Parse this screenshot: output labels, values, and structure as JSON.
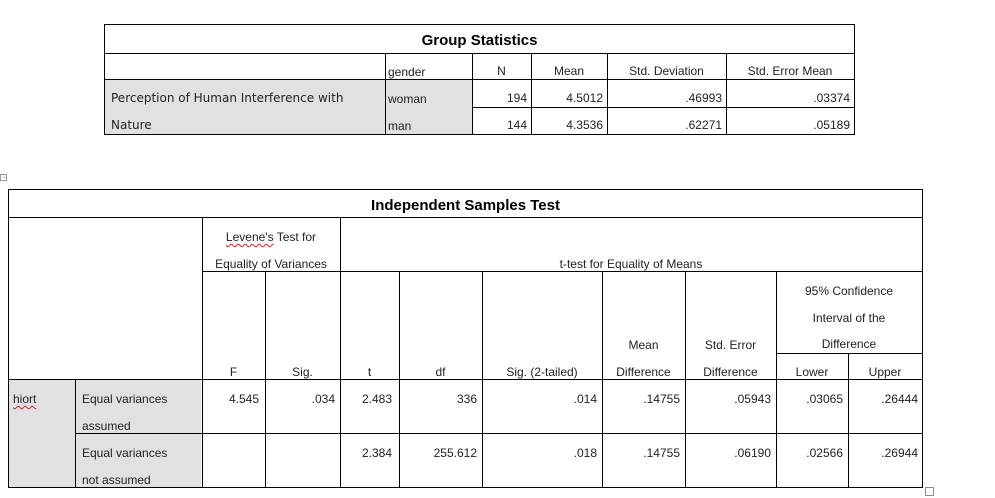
{
  "group_statistics": {
    "title": "Group Statistics",
    "headers": {
      "gender": "gender",
      "n": "N",
      "mean": "Mean",
      "std_deviation": "Std. Deviation",
      "std_error_mean": "Std. Error Mean"
    },
    "row_label_line1": "Perception of Human Interference with",
    "row_label_line2": "Nature",
    "rows": [
      {
        "gender": "woman",
        "n": "194",
        "mean": "4.5012",
        "std_deviation": ".46993",
        "std_error_mean": ".03374"
      },
      {
        "gender": "man",
        "n": "144",
        "mean": "4.3536",
        "std_deviation": ".62271",
        "std_error_mean": ".05189"
      }
    ]
  },
  "independent_samples_test": {
    "title": "Independent Samples Test",
    "levene_header_word": "Levene's",
    "levene_header_rest": " Test for",
    "levene_header_line2": "Equality of Variances",
    "ttest_header": "t-test for Equality of Means",
    "ci_header_line1": "95% Confidence",
    "ci_header_line2": "Interval of the",
    "ci_header_line3": "Difference",
    "col_headers": {
      "f": "F",
      "sig": "Sig.",
      "t": "t",
      "df": "df",
      "sig2": "Sig. (2-tailed)",
      "mean_diff_line1": "Mean",
      "mean_diff_line2": "Difference",
      "se_diff_line1": "Std. Error",
      "se_diff_line2": "Difference",
      "lower": "Lower",
      "upper": "Upper"
    },
    "variable": "hiort",
    "rows": [
      {
        "label_line1": "Equal variances",
        "label_line2": "assumed",
        "f": "4.545",
        "sig": ".034",
        "t": "2.483",
        "df": "336",
        "sig2": ".014",
        "mean_diff": ".14755",
        "se_diff": ".05943",
        "lower": ".03065",
        "upper": ".26444"
      },
      {
        "label_line1": "Equal variances",
        "label_line2": "not assumed",
        "f": "",
        "sig": "",
        "t": "2.384",
        "df": "255.612",
        "sig2": ".018",
        "mean_diff": ".14755",
        "se_diff": ".06190",
        "lower": ".02566",
        "upper": ".26944"
      }
    ]
  }
}
